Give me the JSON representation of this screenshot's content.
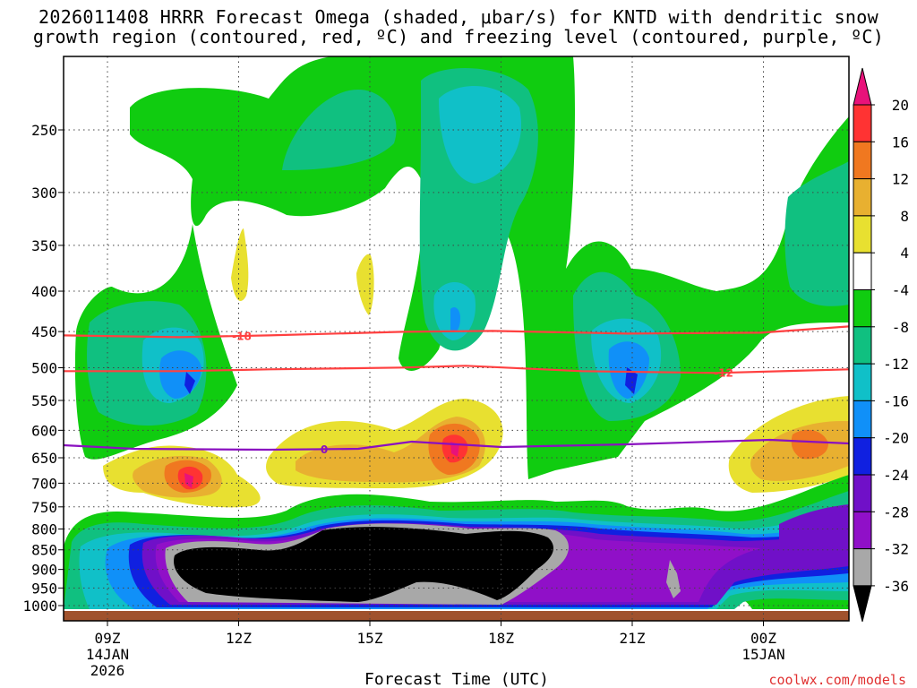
{
  "chart_data": {
    "type": "heatmap",
    "title_line1": "2026011408 HRRR Forecast Omega (shaded, μbar/s) for KNTD with dendritic snow",
    "title_line2": "growth region (contoured, red, ºC) and freezing level (contoured, purple, ºC)",
    "xlabel": "Forecast Time (UTC)",
    "y_ticks": [
      "250",
      "300",
      "350",
      "400",
      "450",
      "500",
      "550",
      "600",
      "650",
      "700",
      "750",
      "800",
      "850",
      "900",
      "950",
      "1000"
    ],
    "x_ticks": [
      {
        "line1": "09Z",
        "line2": "14JAN",
        "line3": "2026"
      },
      {
        "line1": "12Z",
        "line2": "",
        "line3": ""
      },
      {
        "line1": "15Z",
        "line2": "",
        "line3": ""
      },
      {
        "line1": "18Z",
        "line2": "",
        "line3": ""
      },
      {
        "line1": "21Z",
        "line2": "",
        "line3": ""
      },
      {
        "line1": "00Z",
        "line2": "15JAN",
        "line3": ""
      }
    ],
    "colorbar": {
      "labels": [
        "20",
        "16",
        "12",
        "8",
        "4",
        "-4",
        "-8",
        "-12",
        "-16",
        "-20",
        "-24",
        "-28",
        "-32",
        "-36"
      ],
      "colors": [
        "#e8127a",
        "#ff3333",
        "#f07820",
        "#e8b030",
        "#e8e030",
        "#ffffff",
        "#10cc10",
        "#10c080",
        "#10c0c8",
        "#1090f8",
        "#1020e0",
        "#7010c8",
        "#9010c8",
        "#a8a8a8",
        "#000000"
      ]
    },
    "contours": [
      {
        "name": "-18",
        "label": "-18",
        "color": "#ff4040",
        "pressure_hpa": 455
      },
      {
        "name": "-12",
        "label": "-12",
        "color": "#ff4040",
        "pressure_hpa": 505
      },
      {
        "name": "0",
        "label": "0",
        "color": "#8a10c0",
        "pressure_hpa": 630
      }
    ],
    "credit": "coolwx.com/models"
  }
}
